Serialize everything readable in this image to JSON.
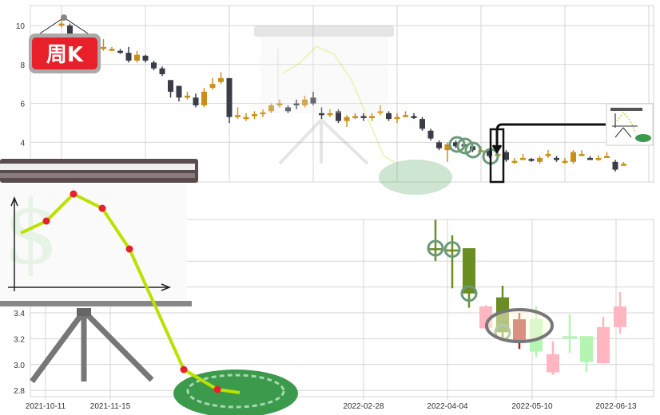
{
  "badge": {
    "label": "周K"
  },
  "colors": {
    "up": "#c8901a",
    "down": "#3a3d48",
    "grid": "#d6d6d6",
    "bottom_green": "#6b8e23",
    "bottom_darkred": "#b22222",
    "bottom_pink": "#ffb6c1",
    "bottom_lightgreen": "#b4f5b4",
    "badge_red": "#e8202a"
  },
  "chart_data": [
    {
      "type": "candlestick",
      "title": "",
      "ylim": [
        2.4,
        11
      ],
      "yticks": [
        "10",
        "8",
        "6",
        "4"
      ],
      "ytick_values": [
        10,
        8,
        6,
        4
      ],
      "grid": true,
      "candles": [
        [
          10.1,
          10.1,
          10.3,
          9.9
        ],
        [
          10.0,
          9.3,
          10.1,
          9.2
        ],
        [
          9.3,
          9.2,
          9.4,
          9.0
        ],
        [
          9.2,
          9.1,
          9.3,
          8.9
        ],
        [
          9.1,
          9.0,
          9.2,
          8.8
        ],
        [
          8.9,
          8.9,
          9.3,
          8.7
        ],
        [
          8.8,
          8.8,
          8.9,
          8.7
        ],
        [
          8.7,
          8.65,
          8.8,
          8.55
        ],
        [
          8.6,
          8.2,
          8.9,
          8.1
        ],
        [
          8.2,
          8.5,
          8.7,
          8.1
        ],
        [
          8.45,
          8.2,
          8.5,
          8.1
        ],
        [
          8.1,
          7.8,
          8.2,
          7.7
        ],
        [
          7.8,
          7.5,
          7.9,
          7.4
        ],
        [
          7.2,
          6.6,
          7.2,
          6.3
        ],
        [
          6.9,
          6.3,
          6.9,
          6.1
        ],
        [
          6.4,
          6.4,
          6.6,
          6.2
        ],
        [
          6.3,
          5.9,
          6.5,
          5.8
        ],
        [
          5.9,
          6.6,
          6.8,
          5.8
        ],
        [
          6.8,
          7.0,
          7.3,
          6.7
        ],
        [
          7.1,
          7.3,
          7.6,
          7.0
        ],
        [
          7.3,
          5.3,
          7.3,
          5.0
        ],
        [
          5.4,
          5.4,
          5.8,
          5.2
        ],
        [
          5.3,
          5.3,
          5.5,
          5.1
        ],
        [
          5.35,
          5.45,
          5.6,
          5.2
        ],
        [
          5.45,
          5.55,
          5.7,
          5.3
        ],
        [
          5.6,
          5.9,
          6.0,
          5.5
        ],
        [
          6.0,
          6.0,
          6.2,
          5.8
        ],
        [
          5.8,
          5.6,
          5.9,
          5.5
        ],
        [
          6.0,
          5.95,
          6.2,
          5.7
        ],
        [
          5.9,
          6.2,
          6.4,
          5.8
        ],
        [
          6.3,
          6.0,
          6.6,
          5.9
        ],
        [
          5.5,
          5.45,
          5.8,
          5.2
        ],
        [
          5.5,
          5.5,
          5.7,
          5.3
        ],
        [
          5.6,
          5.1,
          5.7,
          5.0
        ],
        [
          5.1,
          5.3,
          5.4,
          4.8
        ],
        [
          5.3,
          5.35,
          5.5,
          5.2
        ],
        [
          5.35,
          5.25,
          5.5,
          5.1
        ],
        [
          5.3,
          5.35,
          5.5,
          5.1
        ],
        [
          5.6,
          5.6,
          5.9,
          5.4
        ],
        [
          5.5,
          5.2,
          5.6,
          5.1
        ],
        [
          5.2,
          5.3,
          5.5,
          5.0
        ],
        [
          5.4,
          5.4,
          5.6,
          5.3
        ],
        [
          5.35,
          5.3,
          5.5,
          5.2
        ],
        [
          5.2,
          4.7,
          5.3,
          4.6
        ],
        [
          4.6,
          4.2,
          4.7,
          4.1
        ],
        [
          4.0,
          3.7,
          4.1,
          3.6
        ],
        [
          3.6,
          3.9,
          4.0,
          3.0
        ],
        [
          4.0,
          3.8,
          4.1,
          3.7
        ],
        [
          3.9,
          3.85,
          4.0,
          3.7
        ],
        [
          3.8,
          3.6,
          3.9,
          3.5
        ],
        [
          3.6,
          3.6,
          3.8,
          3.5
        ],
        [
          3.6,
          3.3,
          3.7,
          3.2
        ],
        [
          3.3,
          3.4,
          3.5,
          3.2
        ],
        [
          3.5,
          3.1,
          3.6,
          3.0
        ],
        [
          3.0,
          3.05,
          3.2,
          2.9
        ],
        [
          3.2,
          3.2,
          3.4,
          3.1
        ],
        [
          3.15,
          3.05,
          3.2,
          3.0
        ],
        [
          3.0,
          3.2,
          3.3,
          2.9
        ],
        [
          3.3,
          3.4,
          3.6,
          3.2
        ],
        [
          3.2,
          3.1,
          3.3,
          3.0
        ],
        [
          3.0,
          3.05,
          3.2,
          2.9
        ],
        [
          3.0,
          3.5,
          3.6,
          2.9
        ],
        [
          3.4,
          3.4,
          3.6,
          3.3
        ],
        [
          3.2,
          3.15,
          3.3,
          3.1
        ],
        [
          3.2,
          3.2,
          3.35,
          3.05
        ],
        [
          3.3,
          3.3,
          3.5,
          3.2
        ],
        [
          3.0,
          2.6,
          3.1,
          2.5
        ],
        [
          2.85,
          2.9,
          3.0,
          2.8
        ]
      ]
    },
    {
      "type": "candlestick",
      "title": "",
      "ylim": [
        2.76,
        4.12
      ],
      "yticks": [
        "3.4",
        "3.2",
        "3.0",
        "2.8"
      ],
      "ytick_values": [
        3.4,
        3.2,
        3.0,
        2.8
      ],
      "xticks": [
        "2021-10-11",
        "2021-11-15",
        "2022-02-28",
        "2022-04-04",
        "2022-05-10",
        "2022-06-13"
      ],
      "grid": true,
      "candles": [
        {
          "date": "2022-03-28",
          "o": 3.89,
          "c": 3.9,
          "h": 4.12,
          "l": 3.8,
          "color": "bottom_green",
          "marker": true
        },
        {
          "date": "2022-04-04",
          "o": 3.89,
          "c": 3.89,
          "h": 4.0,
          "l": 3.59,
          "color": "bottom_green",
          "marker": true
        },
        {
          "date": "2022-04-11",
          "o": 3.9,
          "c": 3.55,
          "h": 3.9,
          "l": 3.44,
          "color": "bottom_green",
          "marker": true
        },
        {
          "date": "2022-04-18",
          "o": 3.28,
          "c": 3.45,
          "h": 3.46,
          "l": 3.27,
          "color": "bottom_pink"
        },
        {
          "date": "2022-04-25",
          "o": 3.52,
          "c": 3.25,
          "h": 3.61,
          "l": 3.2,
          "color": "bottom_green",
          "marker": true
        },
        {
          "date": "2022-05-02",
          "o": 3.35,
          "c": 3.18,
          "h": 3.4,
          "l": 3.12,
          "color": "bottom_darkred"
        },
        {
          "date": "2022-05-09",
          "o": 3.35,
          "c": 3.1,
          "h": 3.45,
          "l": 3.06,
          "color": "bottom_lightgreen"
        },
        {
          "date": "2022-05-16",
          "o": 2.94,
          "c": 3.08,
          "h": 3.18,
          "l": 2.92,
          "color": "bottom_pink"
        },
        {
          "date": "2022-05-23",
          "o": 3.22,
          "c": 3.22,
          "h": 3.39,
          "l": 3.09,
          "color": "bottom_lightgreen"
        },
        {
          "date": "2022-05-30",
          "o": 3.22,
          "c": 3.02,
          "h": 3.22,
          "l": 2.94,
          "color": "bottom_lightgreen"
        },
        {
          "date": "2022-06-06",
          "o": 3.01,
          "c": 3.29,
          "h": 3.37,
          "l": 3.01,
          "color": "bottom_pink"
        },
        {
          "date": "2022-06-13",
          "o": 3.29,
          "c": 3.45,
          "h": 3.56,
          "l": 3.24,
          "color": "bottom_pink"
        }
      ]
    }
  ]
}
